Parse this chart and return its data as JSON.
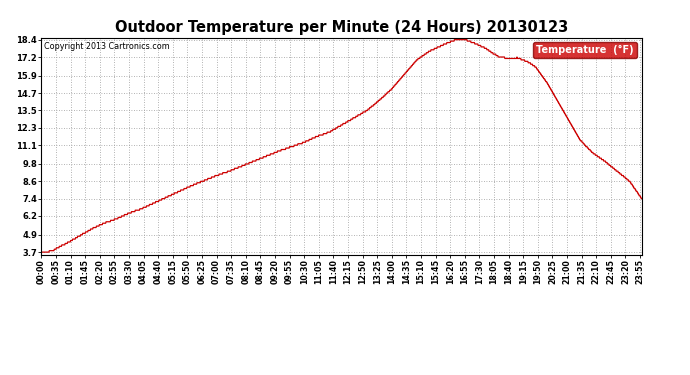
{
  "title": "Outdoor Temperature per Minute (24 Hours) 20130123",
  "copyright_text": "Copyright 2013 Cartronics.com",
  "legend_label": "Temperature  (°F)",
  "line_color": "#cc0000",
  "background_color": "#ffffff",
  "plot_bg_color": "#ffffff",
  "grid_color": "#999999",
  "y_ticks": [
    3.7,
    4.9,
    6.2,
    7.4,
    8.6,
    9.8,
    11.1,
    12.3,
    13.5,
    14.7,
    15.9,
    17.2,
    18.4
  ],
  "y_min": 3.7,
  "y_max": 18.4,
  "x_tick_interval": 35,
  "total_minutes": 1440,
  "title_fontsize": 10.5,
  "label_fontsize": 6.0,
  "copyright_fontsize": 5.8
}
